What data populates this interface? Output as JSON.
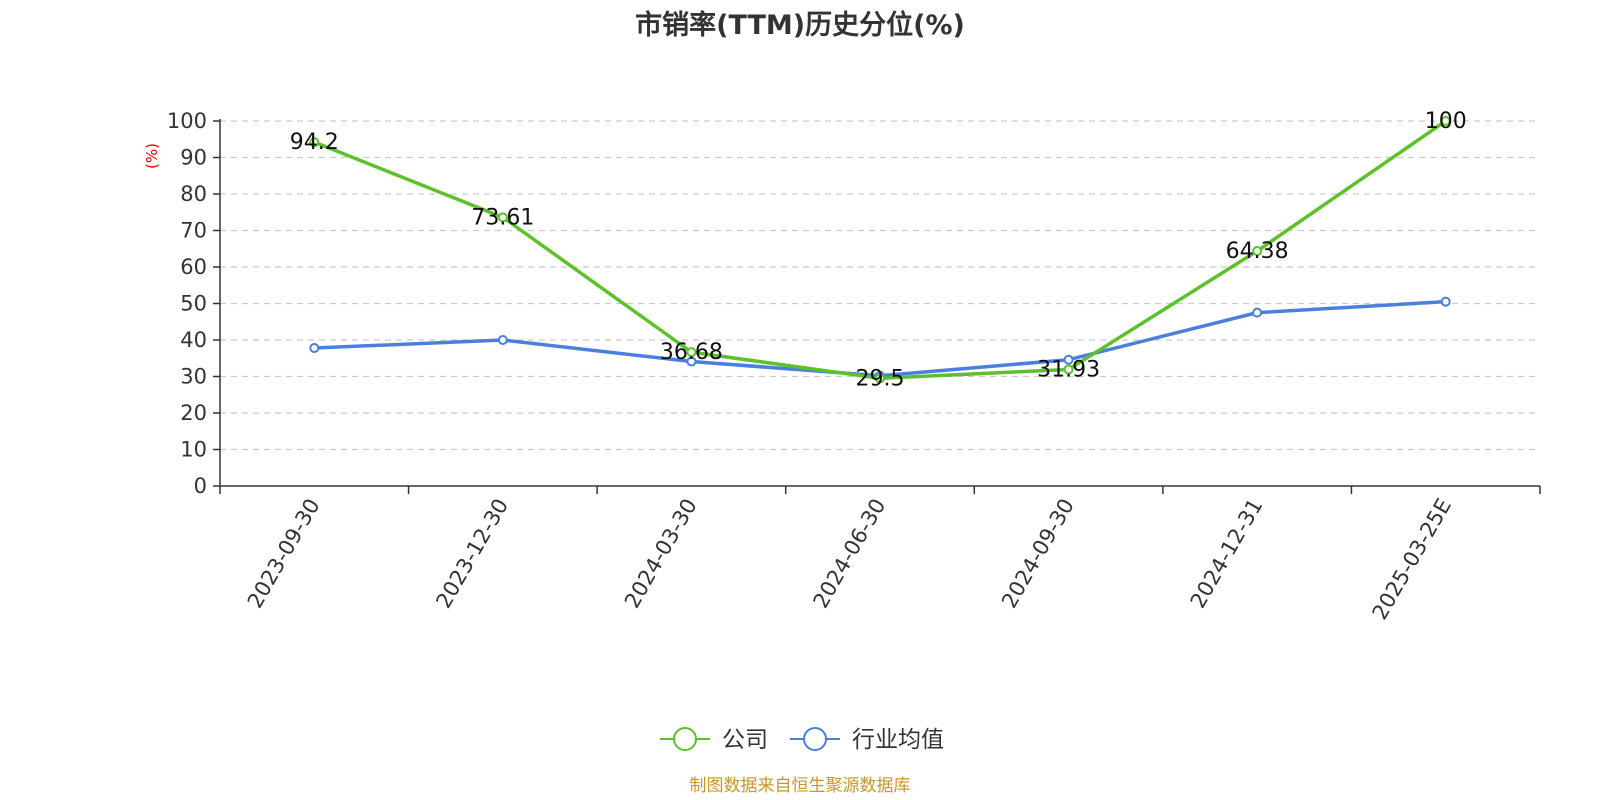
{
  "chart_data": {
    "type": "line",
    "title": "市销率(TTM)历史分位(%)",
    "ylabel": "(%)",
    "xlabel": "",
    "ylim": [
      0,
      100
    ],
    "yticks": [
      0,
      10,
      20,
      30,
      40,
      50,
      60,
      70,
      80,
      90,
      100
    ],
    "grid": true,
    "legend_position": "bottom",
    "categories": [
      "2023-09-30",
      "2023-12-30",
      "2024-03-30",
      "2024-06-30",
      "2024-09-30",
      "2024-12-31",
      "2025-03-25E"
    ],
    "series": [
      {
        "name": "公司",
        "color": "#5cc12a",
        "values": [
          94.2,
          73.61,
          36.68,
          29.5,
          31.93,
          64.38,
          100
        ],
        "data_labels": [
          "94.2",
          "73.61",
          "36.68",
          "29.5",
          "31.93",
          "64.38",
          "100"
        ]
      },
      {
        "name": "行业均值",
        "color": "#4a7fdb",
        "values": [
          37.8,
          40.0,
          34.1,
          30.2,
          34.6,
          47.5,
          50.5
        ]
      }
    ],
    "source": "制图数据来自恒生聚源数据库"
  }
}
